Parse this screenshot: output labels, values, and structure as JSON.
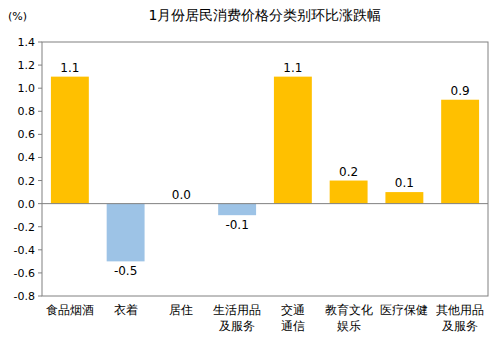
{
  "chart_data": {
    "type": "bar",
    "title": "1月份居民消费价格分类别环比涨跌幅",
    "y_label": "(%)",
    "categories": [
      "食品烟酒",
      "衣着",
      "居住",
      "生活用品\n及服务",
      "交通\n通信",
      "教育文化\n娱乐",
      "医疗保健",
      "其他用品\n及服务"
    ],
    "values": [
      1.1,
      -0.5,
      0.0,
      -0.1,
      1.1,
      0.2,
      0.1,
      0.9
    ],
    "value_labels": [
      "1.1",
      "-0.5",
      "0.0",
      "-0.1",
      "1.1",
      "0.2",
      "0.1",
      "0.9"
    ],
    "colors": [
      "#ffc000",
      "#9dc3e6",
      "#ffc000",
      "#9dc3e6",
      "#ffc000",
      "#ffc000",
      "#ffc000",
      "#ffc000"
    ],
    "ylim": [
      -0.8,
      1.4
    ],
    "yticks": [
      -0.8,
      -0.6,
      -0.4,
      -0.2,
      {
        "value": 0,
        "label": "0.0"
      },
      0.2,
      0.4,
      0.6,
      0.8,
      {
        "value": 1,
        "label": "1.0"
      },
      1.2,
      1.4
    ],
    "grid": false,
    "data_labels": true
  }
}
